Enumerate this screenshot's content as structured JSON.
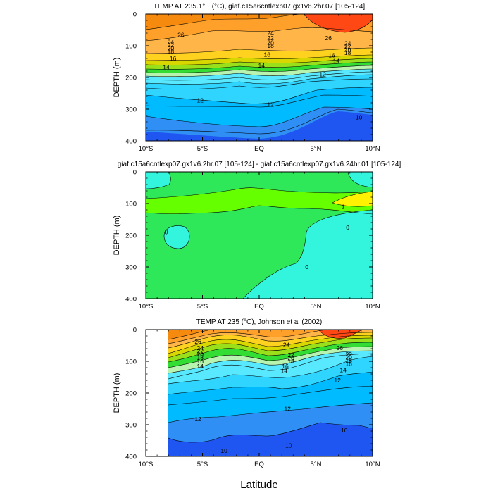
{
  "figure": {
    "x_axis_label": "Latitude",
    "y_axis_label": "DEPTH (m)"
  },
  "colors": {
    "temp_palette": [
      "#1f55f0",
      "#2f8ff4",
      "#00bbff",
      "#2fd4ff",
      "#58e8ff",
      "#b8f4b0",
      "#33dd33",
      "#99e01a",
      "#d8d800",
      "#ffd21f",
      "#ffb547",
      "#ffa02a",
      "#f58a0f",
      "#ff4814"
    ],
    "diff_palette": {
      "neg": "#33f5dd",
      "zero": "#2ee85a",
      "pos": "#66ff00",
      "high": "#fff200"
    },
    "missing": "#ffffff"
  },
  "chart_data": [
    {
      "type": "contour",
      "title": "TEMP AT 235.1°E (°C), giaf.c15a6cntlexp07.gx1v6.2hr.07 [105-124]",
      "xlabel": "",
      "ylabel": "DEPTH (m)",
      "x_ticks": [
        "10°S",
        "5°S",
        "EQ",
        "5°N",
        "10°N"
      ],
      "x_tick_values": [
        -10,
        -5,
        0,
        5,
        10
      ],
      "y_ticks": [
        "0",
        "100",
        "200",
        "300",
        "400"
      ],
      "y_tick_values": [
        0,
        100,
        200,
        300,
        400
      ],
      "xlim": [
        -10,
        10
      ],
      "ylim": [
        400,
        0
      ],
      "contour_levels": [
        10,
        11,
        12,
        13,
        14,
        15,
        16,
        17,
        18,
        19,
        20,
        21,
        22,
        23,
        24,
        25,
        26
      ],
      "contour_labels": [
        {
          "text": "26",
          "x": -6.9,
          "y": 65
        },
        {
          "text": "24",
          "x": 1.0,
          "y": 60
        },
        {
          "text": "22",
          "x": 1.0,
          "y": 75
        },
        {
          "text": "20",
          "x": 1.0,
          "y": 90
        },
        {
          "text": "18",
          "x": 1.0,
          "y": 100
        },
        {
          "text": "24",
          "x": -7.8,
          "y": 88
        },
        {
          "text": "22",
          "x": -7.8,
          "y": 98
        },
        {
          "text": "20",
          "x": -7.8,
          "y": 108
        },
        {
          "text": "18",
          "x": -7.8,
          "y": 118
        },
        {
          "text": "16",
          "x": -7.6,
          "y": 140
        },
        {
          "text": "14",
          "x": -8.2,
          "y": 168
        },
        {
          "text": "16",
          "x": 0.7,
          "y": 128
        },
        {
          "text": "14",
          "x": 0.2,
          "y": 162
        },
        {
          "text": "26",
          "x": 6.1,
          "y": 75
        },
        {
          "text": "24",
          "x": 7.8,
          "y": 92
        },
        {
          "text": "22",
          "x": 7.8,
          "y": 102
        },
        {
          "text": "20",
          "x": 7.8,
          "y": 112
        },
        {
          "text": "18",
          "x": 7.8,
          "y": 122
        },
        {
          "text": "16",
          "x": 6.4,
          "y": 130
        },
        {
          "text": "14",
          "x": 6.8,
          "y": 148
        },
        {
          "text": "12",
          "x": 5.6,
          "y": 190
        },
        {
          "text": "12",
          "x": -5.2,
          "y": 272
        },
        {
          "text": "12",
          "x": 1.0,
          "y": 285
        },
        {
          "text": "10",
          "x": 8.8,
          "y": 325
        }
      ]
    },
    {
      "type": "contour",
      "title": "giaf.c15a6cntlexp07.gx1v6.2hr.07 [105-124] - giaf.c15a6cntlexp07.gx1v6.24hr.01 [105-124]",
      "xlabel": "",
      "ylabel": "DEPTH (m)",
      "x_ticks": [
        "10°S",
        "5°S",
        "EQ",
        "5°N",
        "10°N"
      ],
      "x_tick_values": [
        -10,
        -5,
        0,
        5,
        10
      ],
      "y_ticks": [
        "0",
        "100",
        "200",
        "300",
        "400"
      ],
      "y_tick_values": [
        0,
        100,
        200,
        300,
        400
      ],
      "xlim": [
        -10,
        10
      ],
      "ylim": [
        400,
        0
      ],
      "contour_levels": [
        0,
        1
      ],
      "contour_labels": [
        {
          "text": "1",
          "x": 7.4,
          "y": 110
        },
        {
          "text": "0",
          "x": 7.8,
          "y": 175
        },
        {
          "text": "0",
          "x": 4.2,
          "y": 300
        },
        {
          "text": "0",
          "x": -8.2,
          "y": 190
        }
      ]
    },
    {
      "type": "contour",
      "title": "TEMP AT 235 (°C), Johnson et al (2002)",
      "xlabel": "Latitude",
      "ylabel": "DEPTH (m)",
      "x_ticks": [
        "10°S",
        "5°S",
        "EQ",
        "5°N",
        "10°N"
      ],
      "x_tick_values": [
        -10,
        -5,
        0,
        5,
        10
      ],
      "y_ticks": [
        "0",
        "100",
        "200",
        "300",
        "400"
      ],
      "y_tick_values": [
        0,
        100,
        200,
        300,
        400
      ],
      "xlim": [
        -10,
        10
      ],
      "ylim": [
        400,
        0
      ],
      "data_x_range": [
        -8,
        10
      ],
      "contour_levels": [
        10,
        11,
        12,
        13,
        14,
        15,
        16,
        17,
        18,
        19,
        20,
        21,
        22,
        23,
        24,
        25,
        26
      ],
      "contour_labels": [
        {
          "text": "26",
          "x": -5.4,
          "y": 38
        },
        {
          "text": "24",
          "x": -5.2,
          "y": 58
        },
        {
          "text": "22",
          "x": -5.2,
          "y": 68
        },
        {
          "text": "20",
          "x": -5.2,
          "y": 78
        },
        {
          "text": "18",
          "x": -5.2,
          "y": 88
        },
        {
          "text": "16",
          "x": -5.2,
          "y": 100
        },
        {
          "text": "14",
          "x": -5.2,
          "y": 115
        },
        {
          "text": "24",
          "x": 2.4,
          "y": 48
        },
        {
          "text": "22",
          "x": 2.8,
          "y": 80
        },
        {
          "text": "20",
          "x": 2.8,
          "y": 90
        },
        {
          "text": "18",
          "x": 2.8,
          "y": 100
        },
        {
          "text": "16",
          "x": 2.3,
          "y": 115
        },
        {
          "text": "14",
          "x": 2.2,
          "y": 130
        },
        {
          "text": "26",
          "x": 7.1,
          "y": 58
        },
        {
          "text": "22",
          "x": 7.9,
          "y": 78
        },
        {
          "text": "20",
          "x": 7.9,
          "y": 88
        },
        {
          "text": "18",
          "x": 7.9,
          "y": 98
        },
        {
          "text": "16",
          "x": 7.9,
          "y": 108
        },
        {
          "text": "14",
          "x": 7.4,
          "y": 128
        },
        {
          "text": "12",
          "x": 6.9,
          "y": 160
        },
        {
          "text": "12",
          "x": 2.5,
          "y": 250
        },
        {
          "text": "12",
          "x": -5.4,
          "y": 282
        },
        {
          "text": "10",
          "x": 2.6,
          "y": 365
        },
        {
          "text": "10",
          "x": 7.5,
          "y": 318
        },
        {
          "text": "10",
          "x": -3.1,
          "y": 382
        }
      ]
    }
  ]
}
